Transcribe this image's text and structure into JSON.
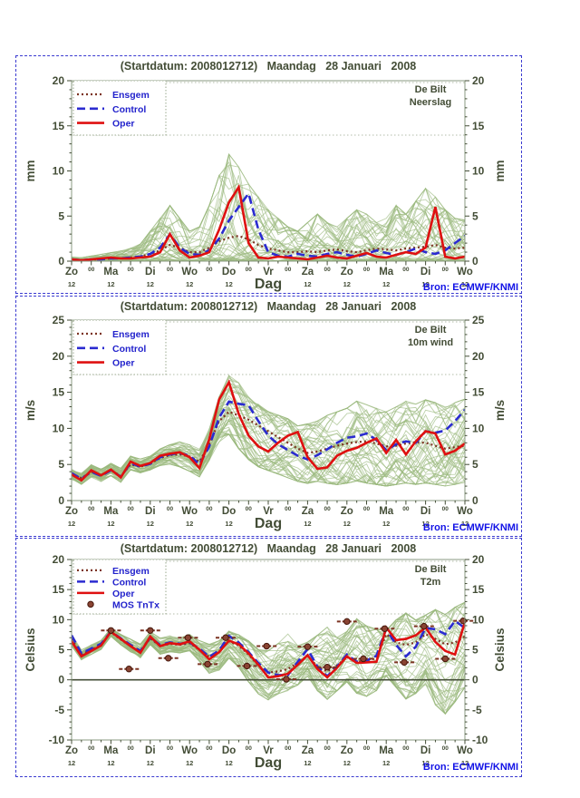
{
  "start_title": "(Startdatum: 2008012712)   Maandag   28 Januari   2008",
  "bron": "Bron: ECMWF/KNMI",
  "x_axis": {
    "axis_title": "Dag",
    "day_labels": [
      "Zo",
      "Ma",
      "Di",
      "Wo",
      "Do",
      "Vr",
      "Za",
      "Zo",
      "Ma",
      "Di",
      "Wo"
    ],
    "midnight_label": "00",
    "noon_label": "12",
    "start_hour": 0,
    "end_hour": 240,
    "step_hours": 6
  },
  "colors": {
    "text_olive": "#434d36",
    "box": "#8a9a80",
    "tick": "#434d36",
    "legend_text": "#2222cc",
    "border_blue": "#3a3ad0",
    "bron_blue": "#1111e6",
    "oper_red": "#df1010",
    "control_blue": "#2b2bd0",
    "ensgem_brown": "#7c3322",
    "mos_fill": "#8a4433",
    "mos_edge": "#46180c",
    "member_green": "#9ab87c",
    "dotted_guide": "#9aa88e"
  },
  "chart_data": [
    {
      "type": "line",
      "station": "De Bilt",
      "variable": "Neerslag",
      "unit": "mm",
      "ymin": 0,
      "ymax": 20,
      "y_major_ticks": [
        0,
        5,
        10,
        15,
        20
      ],
      "ensemble": {
        "count": 48,
        "seed": 101,
        "skew": 2.6,
        "env_min": [
          0,
          0,
          0,
          0,
          0,
          0,
          0,
          0,
          0,
          0,
          0,
          0,
          0,
          0,
          0,
          0,
          0,
          0,
          0,
          0,
          0,
          0,
          0,
          0,
          0,
          0,
          0,
          0,
          0,
          0,
          0,
          0,
          0,
          0,
          0,
          0,
          0,
          0,
          0,
          0,
          0
        ],
        "env_max": [
          0.5,
          0.4,
          0.6,
          0.8,
          1.0,
          1.2,
          1.5,
          2.0,
          3.5,
          5.0,
          6.5,
          5.0,
          3.5,
          4.0,
          6.5,
          10.0,
          12.5,
          11.0,
          9.0,
          7.5,
          6.0,
          5.0,
          4.0,
          3.5,
          4.5,
          5.5,
          4.5,
          4.0,
          5.0,
          6.0,
          5.5,
          4.5,
          5.0,
          6.5,
          5.5,
          7.0,
          8.5,
          7.5,
          6.0,
          5.0,
          4.8
        ]
      },
      "series": [
        {
          "name": "Ensgem",
          "dash": "dotted",
          "width": 2.2,
          "colorKey": "ensgem_brown",
          "values": [
            0.1,
            0.1,
            0.2,
            0.2,
            0.3,
            0.3,
            0.4,
            0.5,
            0.8,
            1.2,
            1.8,
            1.5,
            1.0,
            1.0,
            1.5,
            2.2,
            2.6,
            2.8,
            2.4,
            1.8,
            1.4,
            1.2,
            1.0,
            1.0,
            1.1,
            1.0,
            1.2,
            1.3,
            1.1,
            1.0,
            1.2,
            1.4,
            1.3,
            1.2,
            1.4,
            1.5,
            1.6,
            1.8,
            1.5,
            1.4,
            1.5
          ]
        },
        {
          "name": "Control",
          "dash": "dashed",
          "width": 2.6,
          "colorKey": "control_blue",
          "values": [
            0.2,
            0.1,
            0.2,
            0.2,
            0.3,
            0.3,
            0.4,
            0.5,
            0.8,
            1.5,
            3.0,
            1.5,
            0.8,
            0.7,
            1.2,
            2.5,
            4.5,
            6.0,
            7.5,
            3.5,
            1.0,
            0.6,
            0.5,
            0.8,
            0.6,
            0.5,
            0.8,
            1.0,
            0.7,
            0.5,
            0.8,
            1.2,
            0.9,
            0.7,
            1.0,
            1.4,
            1.0,
            0.8,
            1.2,
            2.0,
            2.8
          ]
        },
        {
          "name": "Oper",
          "dash": "solid",
          "width": 2.6,
          "colorKey": "oper_red",
          "values": [
            0.2,
            0.1,
            0.2,
            0.3,
            0.4,
            0.3,
            0.3,
            0.4,
            0.5,
            1.0,
            3.0,
            1.2,
            0.4,
            0.6,
            1.0,
            3.5,
            6.5,
            8.2,
            2.0,
            0.4,
            0.3,
            0.5,
            0.4,
            0.3,
            0.2,
            0.4,
            0.6,
            0.4,
            0.3,
            0.6,
            0.9,
            0.5,
            0.4,
            0.7,
            1.0,
            0.8,
            1.5,
            6.0,
            0.5,
            0.3,
            0.5
          ]
        }
      ]
    },
    {
      "type": "line",
      "station": "De Bilt",
      "variable": "10m wind",
      "unit": "m/s",
      "ymin": 0,
      "ymax": 25,
      "y_major_ticks": [
        0,
        5,
        10,
        15,
        20,
        25
      ],
      "ensemble": {
        "count": 48,
        "seed": 202,
        "skew": 1,
        "env_min": [
          2.8,
          2.2,
          3.2,
          2.6,
          3.4,
          2.5,
          4.2,
          3.8,
          4.2,
          4.8,
          5.0,
          4.6,
          4.0,
          3.2,
          5.5,
          8.0,
          9.0,
          7.0,
          5.5,
          4.5,
          4.0,
          3.5,
          3.0,
          2.5,
          2.2,
          2.5,
          2.2,
          2.0,
          2.2,
          2.5,
          2.2,
          2.0,
          1.8,
          2.0,
          2.2,
          2.0,
          2.2,
          2.0,
          1.8,
          2.0,
          2.3
        ],
        "env_max": [
          4.4,
          3.8,
          5.0,
          4.4,
          5.2,
          4.5,
          6.2,
          5.8,
          6.2,
          7.2,
          7.8,
          8.2,
          7.8,
          7.2,
          10.0,
          14.5,
          17.5,
          16.5,
          14.5,
          13.5,
          12.5,
          12.0,
          11.5,
          10.5,
          10.8,
          11.2,
          12.0,
          12.5,
          13.0,
          14.0,
          13.5,
          13.0,
          12.5,
          13.2,
          14.0,
          13.6,
          14.2,
          13.8,
          13.2,
          13.8,
          14.3
        ]
      },
      "series": [
        {
          "name": "Ensgem",
          "dash": "dotted",
          "width": 2.2,
          "colorKey": "ensgem_brown",
          "values": [
            3.7,
            3.1,
            4.0,
            3.5,
            4.2,
            3.4,
            5.0,
            4.7,
            5.1,
            5.9,
            6.3,
            6.4,
            6.1,
            5.4,
            7.8,
            11.0,
            12.3,
            11.8,
            11.2,
            10.4,
            9.6,
            8.8,
            8.0,
            7.2,
            6.6,
            6.8,
            7.2,
            7.6,
            7.9,
            8.1,
            8.2,
            7.9,
            7.5,
            7.6,
            7.9,
            8.1,
            8.0,
            7.6,
            7.2,
            7.4,
            7.6
          ]
        },
        {
          "name": "Control",
          "dash": "dashed",
          "width": 2.6,
          "colorKey": "control_blue",
          "values": [
            3.8,
            3.0,
            4.0,
            3.4,
            4.2,
            3.3,
            5.2,
            4.7,
            5.1,
            6.0,
            6.4,
            6.6,
            6.2,
            5.0,
            7.5,
            11.5,
            13.7,
            13.4,
            13.2,
            11.0,
            9.0,
            7.8,
            7.0,
            6.2,
            5.7,
            6.3,
            7.1,
            8.0,
            8.7,
            8.9,
            9.3,
            8.4,
            7.0,
            7.8,
            8.2,
            8.0,
            9.6,
            9.4,
            9.7,
            11.0,
            12.6
          ]
        },
        {
          "name": "Oper",
          "dash": "solid",
          "width": 2.6,
          "colorKey": "oper_red",
          "values": [
            3.6,
            2.8,
            4.2,
            3.5,
            4.3,
            3.2,
            5.4,
            4.8,
            5.2,
            6.2,
            6.5,
            6.7,
            6.0,
            4.5,
            8.5,
            14.0,
            16.4,
            12.0,
            9.0,
            7.5,
            6.8,
            8.0,
            9.0,
            9.5,
            6.0,
            4.4,
            4.6,
            6.2,
            6.9,
            7.3,
            8.0,
            8.6,
            6.6,
            8.4,
            6.4,
            8.2,
            9.6,
            9.3,
            6.4,
            6.9,
            7.9
          ]
        }
      ]
    },
    {
      "type": "line",
      "station": "De Bilt",
      "variable": "T2m",
      "unit": "Celsius",
      "ymin": -10,
      "ymax": 20,
      "y_major_ticks": [
        -10,
        -5,
        0,
        5,
        10,
        15,
        20
      ],
      "zero_line": 0,
      "ensemble": {
        "count": 48,
        "seed": 303,
        "skew": 1,
        "env_min": [
          5.6,
          3.3,
          4.2,
          5.0,
          7.2,
          5.8,
          4.6,
          3.6,
          5.8,
          4.2,
          4.6,
          4.4,
          4.8,
          3.0,
          1.0,
          1.5,
          3.5,
          2.0,
          -0.5,
          -2.5,
          -3.5,
          -2.5,
          -2.0,
          -1.0,
          0.5,
          -2.0,
          -3.5,
          -2.0,
          -0.5,
          -2.5,
          -3.0,
          -2.0,
          0.5,
          -1.5,
          -3.5,
          -2.5,
          -1.0,
          -4.5,
          -6.0,
          -4.0,
          -1.5
        ],
        "env_max": [
          7.6,
          5.0,
          5.9,
          6.6,
          8.6,
          7.6,
          6.8,
          6.0,
          8.0,
          7.0,
          7.4,
          7.0,
          7.6,
          6.6,
          6.0,
          6.6,
          8.2,
          7.6,
          6.6,
          5.2,
          5.0,
          6.2,
          7.8,
          5.8,
          6.4,
          7.6,
          9.0,
          7.2,
          8.2,
          10.4,
          9.2,
          8.6,
          8.4,
          10.2,
          11.4,
          10.2,
          11.0,
          12.0,
          11.2,
          12.4,
          13.2
        ]
      },
      "series": [
        {
          "name": "Ensgem",
          "dash": "dotted",
          "width": 2.2,
          "colorKey": "ensgem_brown",
          "values": [
            6.8,
            4.2,
            5.0,
            5.8,
            7.9,
            6.7,
            5.6,
            4.7,
            6.9,
            5.6,
            6.0,
            5.8,
            6.1,
            5.0,
            3.8,
            4.7,
            6.4,
            5.7,
            4.2,
            2.4,
            1.2,
            1.4,
            1.8,
            2.8,
            4.0,
            2.2,
            1.4,
            2.4,
            3.8,
            3.0,
            3.2,
            3.6,
            7.6,
            6.2,
            5.8,
            6.2,
            7.6,
            6.8,
            5.9,
            6.2,
            7.2
          ]
        },
        {
          "name": "Control",
          "dash": "dashed",
          "width": 2.6,
          "colorKey": "control_blue",
          "values": [
            7.4,
            4.4,
            5.2,
            6.0,
            8.0,
            6.9,
            5.8,
            4.8,
            7.0,
            5.8,
            6.2,
            6.0,
            6.2,
            5.2,
            3.8,
            4.9,
            7.3,
            6.2,
            4.6,
            2.8,
            1.2,
            0.8,
            0.8,
            3.0,
            5.1,
            2.2,
            0.6,
            2.2,
            4.2,
            3.0,
            3.2,
            4.0,
            8.5,
            5.8,
            3.9,
            5.5,
            8.6,
            8.4,
            7.6,
            9.8,
            8.6
          ]
        },
        {
          "name": "Oper",
          "dash": "solid",
          "width": 2.6,
          "colorKey": "oper_red",
          "values": [
            6.4,
            3.9,
            4.8,
            5.7,
            8.0,
            6.8,
            5.6,
            4.5,
            7.2,
            5.6,
            6.1,
            5.9,
            6.4,
            5.0,
            3.4,
            4.6,
            6.5,
            5.9,
            4.4,
            2.5,
            0.4,
            0.6,
            1.0,
            2.5,
            4.1,
            1.8,
            0.4,
            2.0,
            3.9,
            2.8,
            2.9,
            3.0,
            8.7,
            6.6,
            6.8,
            7.4,
            8.7,
            6.3,
            4.8,
            4.2,
            9.6
          ]
        }
      ],
      "mos": {
        "name": "MOS TnTx",
        "points": [
          [
            24,
            8.2
          ],
          [
            35,
            1.8
          ],
          [
            48,
            8.2
          ],
          [
            59,
            3.6
          ],
          [
            71,
            7.0
          ],
          [
            83,
            2.6
          ],
          [
            94,
            7.0
          ],
          [
            107,
            2.3
          ],
          [
            119,
            5.6
          ],
          [
            131,
            0.1
          ],
          [
            144,
            5.5
          ],
          [
            156,
            2.1
          ],
          [
            168,
            9.7
          ],
          [
            178,
            3.5
          ],
          [
            191,
            8.5
          ],
          [
            203,
            2.9
          ],
          [
            215,
            8.9
          ],
          [
            228,
            3.5
          ],
          [
            239,
            9.8
          ]
        ]
      }
    }
  ]
}
